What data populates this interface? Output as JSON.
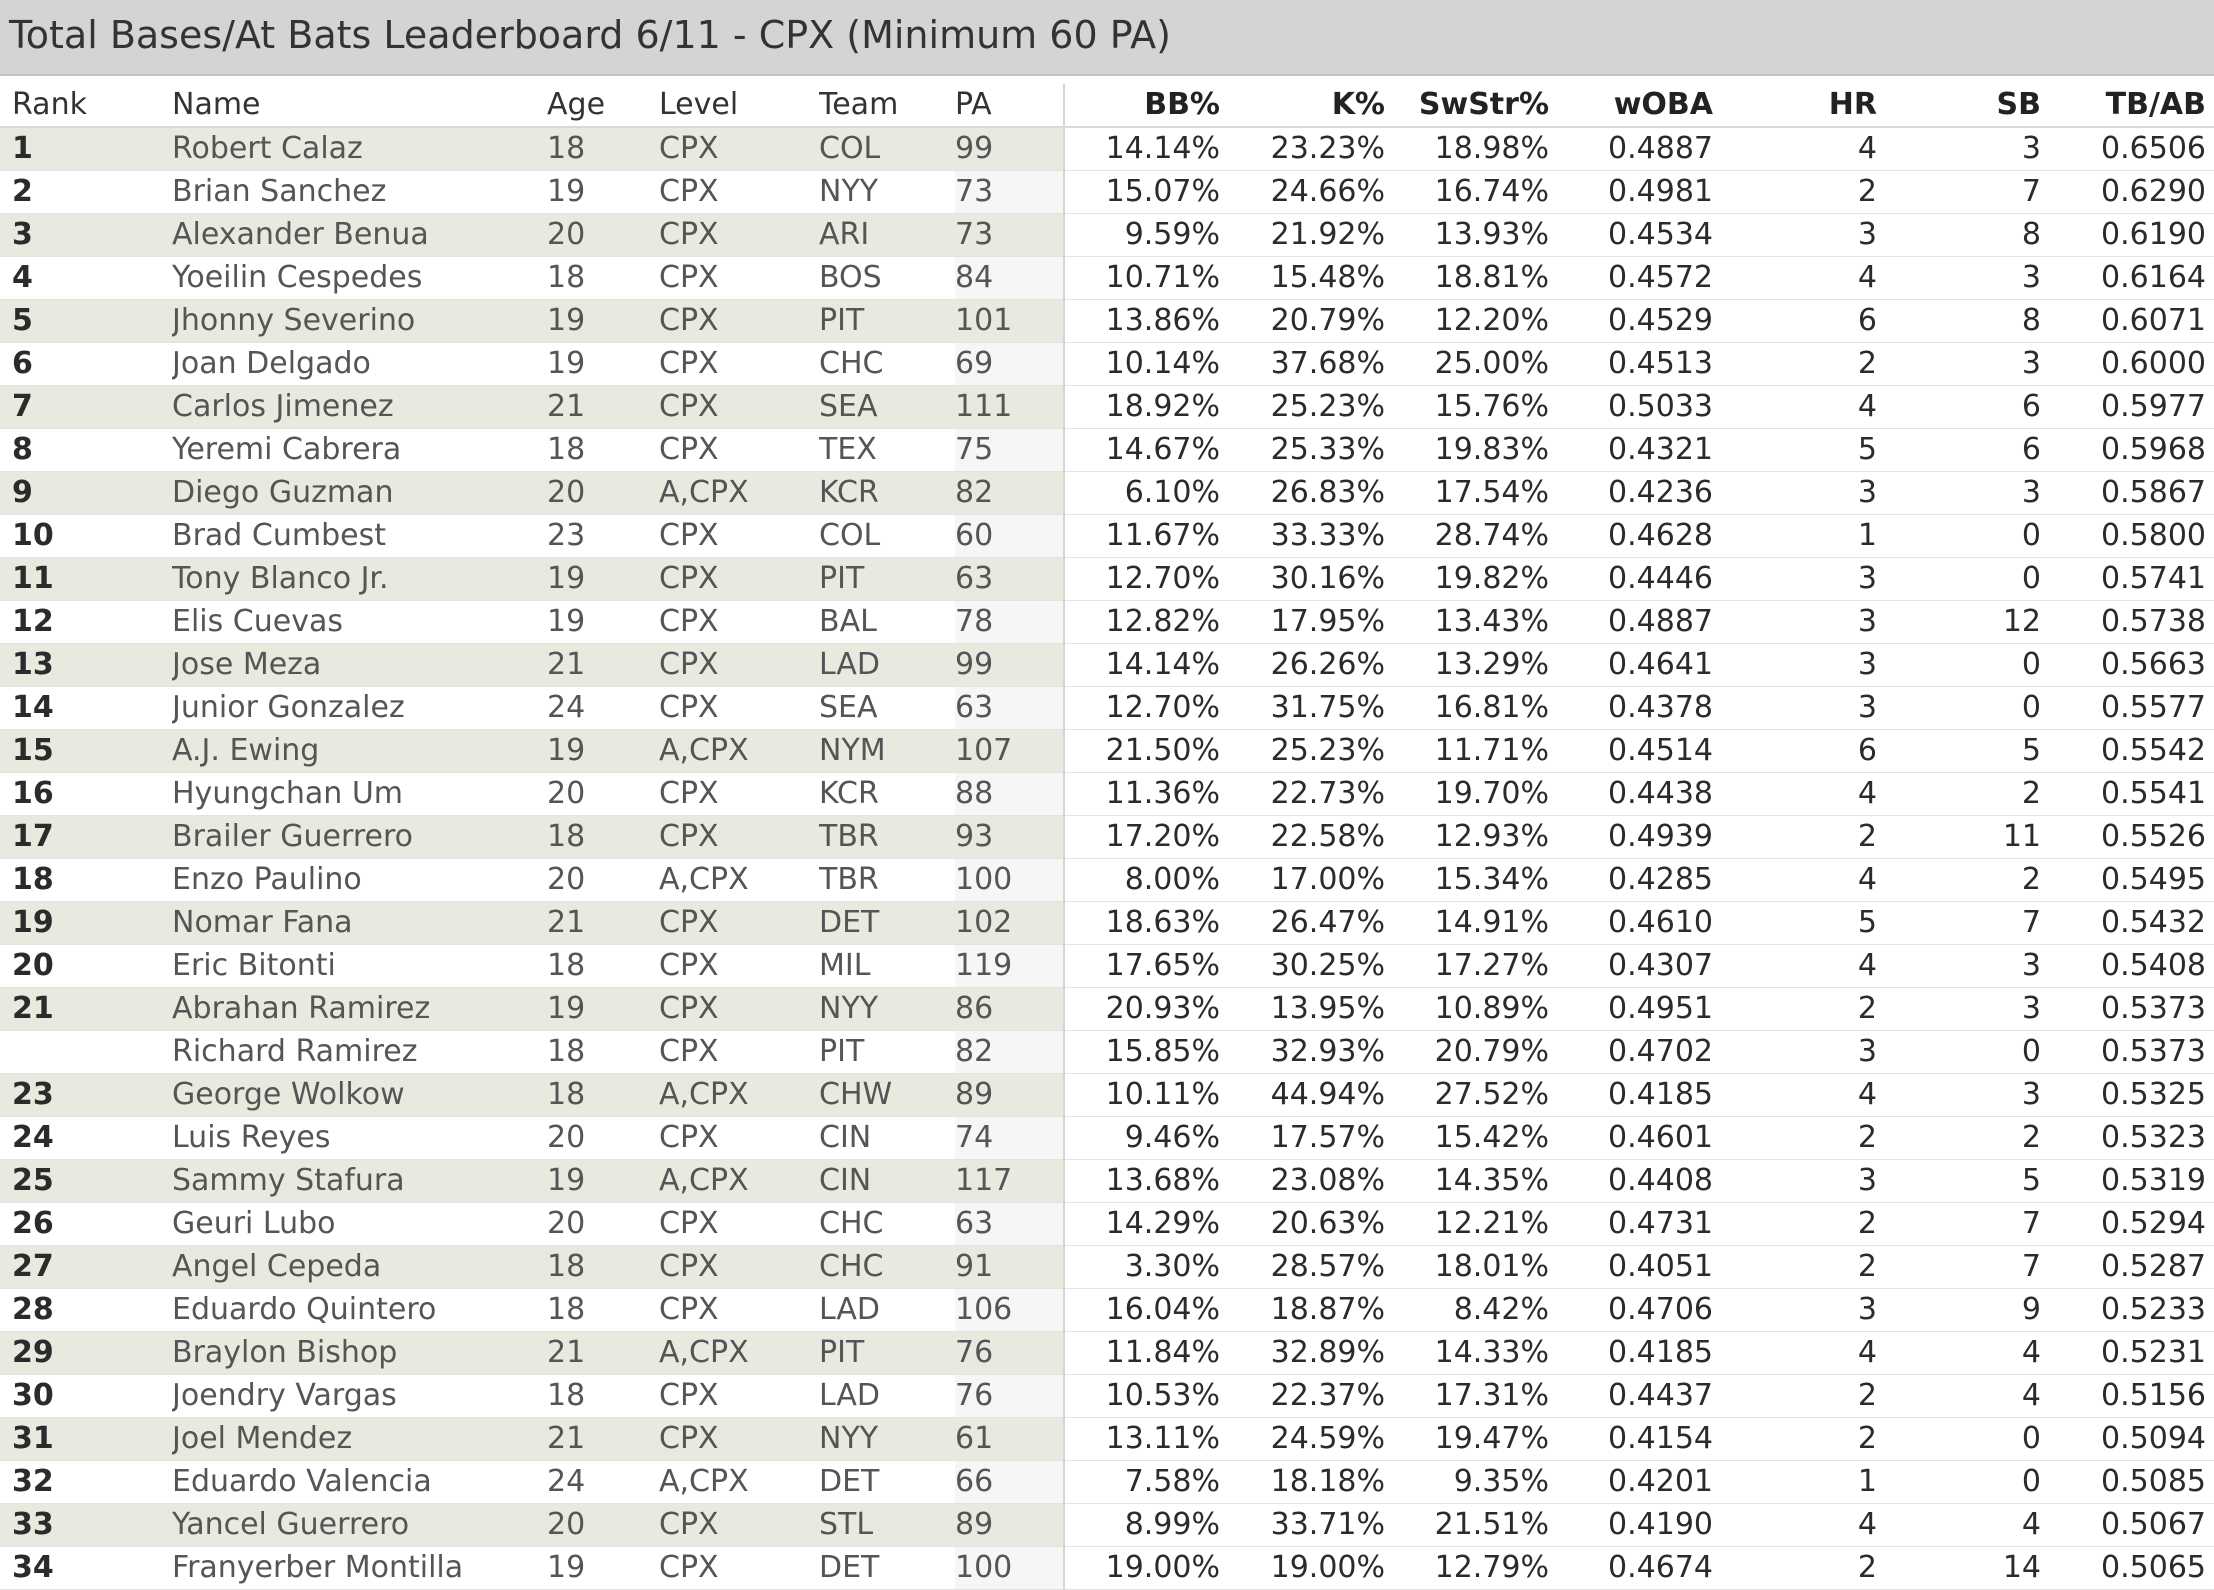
{
  "title": "Total Bases/At Bats Leaderboard 6/11 - CPX (Minimum 60 PA)",
  "columns": {
    "rank": "Rank",
    "name": "Name",
    "age": "Age",
    "level": "Level",
    "team": "Team",
    "pa": "PA",
    "bb": "BB%",
    "k": "K%",
    "swstr": "SwStr%",
    "woba": "wOBA",
    "hr": "HR",
    "sb": "SB",
    "tbab": "TB/AB"
  },
  "rows": [
    {
      "rank": "1",
      "name": "Robert Calaz",
      "age": "18",
      "level": "CPX",
      "team": "COL",
      "pa": "99",
      "bb": "14.14%",
      "k": "23.23%",
      "swstr": "18.98%",
      "woba": "0.4887",
      "hr": "4",
      "sb": "3",
      "tbab": "0.6506"
    },
    {
      "rank": "2",
      "name": "Brian Sanchez",
      "age": "19",
      "level": "CPX",
      "team": "NYY",
      "pa": "73",
      "bb": "15.07%",
      "k": "24.66%",
      "swstr": "16.74%",
      "woba": "0.4981",
      "hr": "2",
      "sb": "7",
      "tbab": "0.6290"
    },
    {
      "rank": "3",
      "name": "Alexander Benua",
      "age": "20",
      "level": "CPX",
      "team": "ARI",
      "pa": "73",
      "bb": "9.59%",
      "k": "21.92%",
      "swstr": "13.93%",
      "woba": "0.4534",
      "hr": "3",
      "sb": "8",
      "tbab": "0.6190"
    },
    {
      "rank": "4",
      "name": "Yoeilin Cespedes",
      "age": "18",
      "level": "CPX",
      "team": "BOS",
      "pa": "84",
      "bb": "10.71%",
      "k": "15.48%",
      "swstr": "18.81%",
      "woba": "0.4572",
      "hr": "4",
      "sb": "3",
      "tbab": "0.6164"
    },
    {
      "rank": "5",
      "name": "Jhonny Severino",
      "age": "19",
      "level": "CPX",
      "team": "PIT",
      "pa": "101",
      "bb": "13.86%",
      "k": "20.79%",
      "swstr": "12.20%",
      "woba": "0.4529",
      "hr": "6",
      "sb": "8",
      "tbab": "0.6071"
    },
    {
      "rank": "6",
      "name": "Joan Delgado",
      "age": "19",
      "level": "CPX",
      "team": "CHC",
      "pa": "69",
      "bb": "10.14%",
      "k": "37.68%",
      "swstr": "25.00%",
      "woba": "0.4513",
      "hr": "2",
      "sb": "3",
      "tbab": "0.6000"
    },
    {
      "rank": "7",
      "name": "Carlos Jimenez",
      "age": "21",
      "level": "CPX",
      "team": "SEA",
      "pa": "111",
      "bb": "18.92%",
      "k": "25.23%",
      "swstr": "15.76%",
      "woba": "0.5033",
      "hr": "4",
      "sb": "6",
      "tbab": "0.5977"
    },
    {
      "rank": "8",
      "name": "Yeremi Cabrera",
      "age": "18",
      "level": "CPX",
      "team": "TEX",
      "pa": "75",
      "bb": "14.67%",
      "k": "25.33%",
      "swstr": "19.83%",
      "woba": "0.4321",
      "hr": "5",
      "sb": "6",
      "tbab": "0.5968"
    },
    {
      "rank": "9",
      "name": "Diego Guzman",
      "age": "20",
      "level": "A,CPX",
      "team": "KCR",
      "pa": "82",
      "bb": "6.10%",
      "k": "26.83%",
      "swstr": "17.54%",
      "woba": "0.4236",
      "hr": "3",
      "sb": "3",
      "tbab": "0.5867"
    },
    {
      "rank": "10",
      "name": "Brad Cumbest",
      "age": "23",
      "level": "CPX",
      "team": "COL",
      "pa": "60",
      "bb": "11.67%",
      "k": "33.33%",
      "swstr": "28.74%",
      "woba": "0.4628",
      "hr": "1",
      "sb": "0",
      "tbab": "0.5800"
    },
    {
      "rank": "11",
      "name": "Tony Blanco Jr.",
      "age": "19",
      "level": "CPX",
      "team": "PIT",
      "pa": "63",
      "bb": "12.70%",
      "k": "30.16%",
      "swstr": "19.82%",
      "woba": "0.4446",
      "hr": "3",
      "sb": "0",
      "tbab": "0.5741"
    },
    {
      "rank": "12",
      "name": "Elis Cuevas",
      "age": "19",
      "level": "CPX",
      "team": "BAL",
      "pa": "78",
      "bb": "12.82%",
      "k": "17.95%",
      "swstr": "13.43%",
      "woba": "0.4887",
      "hr": "3",
      "sb": "12",
      "tbab": "0.5738"
    },
    {
      "rank": "13",
      "name": "Jose Meza",
      "age": "21",
      "level": "CPX",
      "team": "LAD",
      "pa": "99",
      "bb": "14.14%",
      "k": "26.26%",
      "swstr": "13.29%",
      "woba": "0.4641",
      "hr": "3",
      "sb": "0",
      "tbab": "0.5663"
    },
    {
      "rank": "14",
      "name": "Junior Gonzalez",
      "age": "24",
      "level": "CPX",
      "team": "SEA",
      "pa": "63",
      "bb": "12.70%",
      "k": "31.75%",
      "swstr": "16.81%",
      "woba": "0.4378",
      "hr": "3",
      "sb": "0",
      "tbab": "0.5577"
    },
    {
      "rank": "15",
      "name": "A.J. Ewing",
      "age": "19",
      "level": "A,CPX",
      "team": "NYM",
      "pa": "107",
      "bb": "21.50%",
      "k": "25.23%",
      "swstr": "11.71%",
      "woba": "0.4514",
      "hr": "6",
      "sb": "5",
      "tbab": "0.5542"
    },
    {
      "rank": "16",
      "name": "Hyungchan Um",
      "age": "20",
      "level": "CPX",
      "team": "KCR",
      "pa": "88",
      "bb": "11.36%",
      "k": "22.73%",
      "swstr": "19.70%",
      "woba": "0.4438",
      "hr": "4",
      "sb": "2",
      "tbab": "0.5541"
    },
    {
      "rank": "17",
      "name": "Brailer Guerrero",
      "age": "18",
      "level": "CPX",
      "team": "TBR",
      "pa": "93",
      "bb": "17.20%",
      "k": "22.58%",
      "swstr": "12.93%",
      "woba": "0.4939",
      "hr": "2",
      "sb": "11",
      "tbab": "0.5526"
    },
    {
      "rank": "18",
      "name": "Enzo Paulino",
      "age": "20",
      "level": "A,CPX",
      "team": "TBR",
      "pa": "100",
      "bb": "8.00%",
      "k": "17.00%",
      "swstr": "15.34%",
      "woba": "0.4285",
      "hr": "4",
      "sb": "2",
      "tbab": "0.5495"
    },
    {
      "rank": "19",
      "name": "Nomar Fana",
      "age": "21",
      "level": "CPX",
      "team": "DET",
      "pa": "102",
      "bb": "18.63%",
      "k": "26.47%",
      "swstr": "14.91%",
      "woba": "0.4610",
      "hr": "5",
      "sb": "7",
      "tbab": "0.5432"
    },
    {
      "rank": "20",
      "name": "Eric Bitonti",
      "age": "18",
      "level": "CPX",
      "team": "MIL",
      "pa": "119",
      "bb": "17.65%",
      "k": "30.25%",
      "swstr": "17.27%",
      "woba": "0.4307",
      "hr": "4",
      "sb": "3",
      "tbab": "0.5408"
    },
    {
      "rank": "21",
      "name": "Abrahan Ramirez",
      "age": "19",
      "level": "CPX",
      "team": "NYY",
      "pa": "86",
      "bb": "20.93%",
      "k": "13.95%",
      "swstr": "10.89%",
      "woba": "0.4951",
      "hr": "2",
      "sb": "3",
      "tbab": "0.5373"
    },
    {
      "rank": "",
      "name": "Richard Ramirez",
      "age": "18",
      "level": "CPX",
      "team": "PIT",
      "pa": "82",
      "bb": "15.85%",
      "k": "32.93%",
      "swstr": "20.79%",
      "woba": "0.4702",
      "hr": "3",
      "sb": "0",
      "tbab": "0.5373"
    },
    {
      "rank": "23",
      "name": "George Wolkow",
      "age": "18",
      "level": "A,CPX",
      "team": "CHW",
      "pa": "89",
      "bb": "10.11%",
      "k": "44.94%",
      "swstr": "27.52%",
      "woba": "0.4185",
      "hr": "4",
      "sb": "3",
      "tbab": "0.5325"
    },
    {
      "rank": "24",
      "name": "Luis Reyes",
      "age": "20",
      "level": "CPX",
      "team": "CIN",
      "pa": "74",
      "bb": "9.46%",
      "k": "17.57%",
      "swstr": "15.42%",
      "woba": "0.4601",
      "hr": "2",
      "sb": "2",
      "tbab": "0.5323"
    },
    {
      "rank": "25",
      "name": "Sammy Stafura",
      "age": "19",
      "level": "A,CPX",
      "team": "CIN",
      "pa": "117",
      "bb": "13.68%",
      "k": "23.08%",
      "swstr": "14.35%",
      "woba": "0.4408",
      "hr": "3",
      "sb": "5",
      "tbab": "0.5319"
    },
    {
      "rank": "26",
      "name": "Geuri Lubo",
      "age": "20",
      "level": "CPX",
      "team": "CHC",
      "pa": "63",
      "bb": "14.29%",
      "k": "20.63%",
      "swstr": "12.21%",
      "woba": "0.4731",
      "hr": "2",
      "sb": "7",
      "tbab": "0.5294"
    },
    {
      "rank": "27",
      "name": "Angel Cepeda",
      "age": "18",
      "level": "CPX",
      "team": "CHC",
      "pa": "91",
      "bb": "3.30%",
      "k": "28.57%",
      "swstr": "18.01%",
      "woba": "0.4051",
      "hr": "2",
      "sb": "7",
      "tbab": "0.5287"
    },
    {
      "rank": "28",
      "name": "Eduardo Quintero",
      "age": "18",
      "level": "CPX",
      "team": "LAD",
      "pa": "106",
      "bb": "16.04%",
      "k": "18.87%",
      "swstr": "8.42%",
      "woba": "0.4706",
      "hr": "3",
      "sb": "9",
      "tbab": "0.5233"
    },
    {
      "rank": "29",
      "name": "Braylon Bishop",
      "age": "21",
      "level": "A,CPX",
      "team": "PIT",
      "pa": "76",
      "bb": "11.84%",
      "k": "32.89%",
      "swstr": "14.33%",
      "woba": "0.4185",
      "hr": "4",
      "sb": "4",
      "tbab": "0.5231"
    },
    {
      "rank": "30",
      "name": "Joendry Vargas",
      "age": "18",
      "level": "CPX",
      "team": "LAD",
      "pa": "76",
      "bb": "10.53%",
      "k": "22.37%",
      "swstr": "17.31%",
      "woba": "0.4437",
      "hr": "2",
      "sb": "4",
      "tbab": "0.5156"
    },
    {
      "rank": "31",
      "name": "Joel Mendez",
      "age": "21",
      "level": "CPX",
      "team": "NYY",
      "pa": "61",
      "bb": "13.11%",
      "k": "24.59%",
      "swstr": "19.47%",
      "woba": "0.4154",
      "hr": "2",
      "sb": "0",
      "tbab": "0.5094"
    },
    {
      "rank": "32",
      "name": "Eduardo Valencia",
      "age": "24",
      "level": "A,CPX",
      "team": "DET",
      "pa": "66",
      "bb": "7.58%",
      "k": "18.18%",
      "swstr": "9.35%",
      "woba": "0.4201",
      "hr": "1",
      "sb": "0",
      "tbab": "0.5085"
    },
    {
      "rank": "33",
      "name": "Yancel Guerrero",
      "age": "20",
      "level": "CPX",
      "team": "STL",
      "pa": "89",
      "bb": "8.99%",
      "k": "33.71%",
      "swstr": "21.51%",
      "woba": "0.4190",
      "hr": "4",
      "sb": "4",
      "tbab": "0.5067"
    },
    {
      "rank": "34",
      "name": "Franyerber Montilla",
      "age": "19",
      "level": "CPX",
      "team": "DET",
      "pa": "100",
      "bb": "19.00%",
      "k": "19.00%",
      "swstr": "12.79%",
      "woba": "0.4674",
      "hr": "2",
      "sb": "14",
      "tbab": "0.5065"
    }
  ]
}
